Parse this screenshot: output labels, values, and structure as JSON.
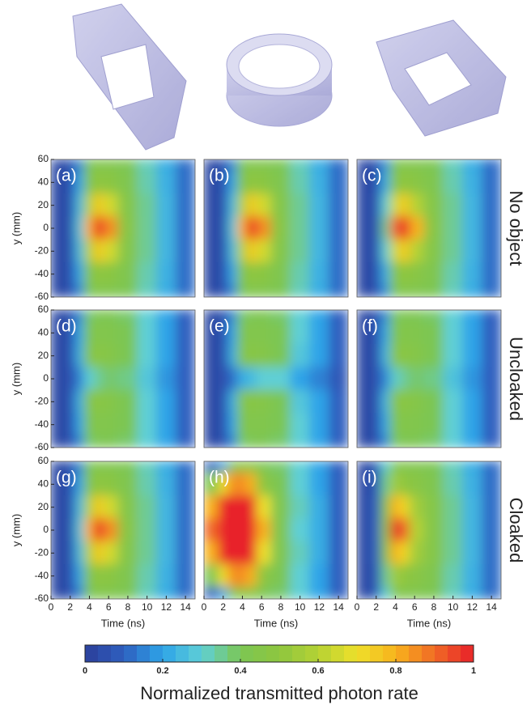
{
  "chart_data": [
    {
      "type": "heatmap",
      "panel_label": "(a)",
      "x": [
        1,
        2,
        3,
        4,
        5,
        6,
        8,
        10,
        12,
        14
      ],
      "y": [
        60,
        40,
        20,
        0,
        -20,
        -40,
        -60
      ],
      "xlim": [
        0,
        15
      ],
      "ylim": [
        -60,
        60
      ],
      "yticks": [
        -60,
        -40,
        -20,
        0,
        20,
        40,
        60
      ],
      "y_label": "y (mm)",
      "z": [
        [
          0.03,
          0.05,
          0.15,
          0.4,
          0.42,
          0.42,
          0.4,
          0.32,
          0.22,
          0.12
        ],
        [
          0.03,
          0.05,
          0.2,
          0.45,
          0.5,
          0.48,
          0.42,
          0.33,
          0.23,
          0.12
        ],
        [
          0.03,
          0.05,
          0.25,
          0.6,
          0.75,
          0.65,
          0.45,
          0.35,
          0.24,
          0.12
        ],
        [
          0.03,
          0.05,
          0.28,
          0.8,
          1,
          0.85,
          0.47,
          0.35,
          0.24,
          0.12
        ],
        [
          0.03,
          0.05,
          0.25,
          0.6,
          0.75,
          0.65,
          0.45,
          0.35,
          0.24,
          0.12
        ],
        [
          0.03,
          0.05,
          0.2,
          0.45,
          0.5,
          0.48,
          0.42,
          0.33,
          0.23,
          0.12
        ],
        [
          0.03,
          0.05,
          0.15,
          0.4,
          0.42,
          0.42,
          0.4,
          0.32,
          0.22,
          0.12
        ]
      ]
    },
    {
      "type": "heatmap",
      "panel_label": "(b)",
      "x": [
        1,
        2,
        3,
        4,
        5,
        6,
        8,
        10,
        12,
        14
      ],
      "y": [
        60,
        40,
        20,
        0,
        -20,
        -40,
        -60
      ],
      "xlim": [
        0,
        15
      ],
      "ylim": [
        -60,
        60
      ],
      "z": [
        [
          0.03,
          0.05,
          0.15,
          0.4,
          0.42,
          0.42,
          0.4,
          0.32,
          0.22,
          0.12
        ],
        [
          0.03,
          0.05,
          0.2,
          0.45,
          0.5,
          0.48,
          0.42,
          0.33,
          0.23,
          0.12
        ],
        [
          0.03,
          0.05,
          0.25,
          0.6,
          0.75,
          0.65,
          0.45,
          0.35,
          0.24,
          0.12
        ],
        [
          0.03,
          0.05,
          0.28,
          0.8,
          1,
          0.85,
          0.47,
          0.35,
          0.24,
          0.12
        ],
        [
          0.03,
          0.05,
          0.25,
          0.6,
          0.75,
          0.65,
          0.45,
          0.35,
          0.24,
          0.12
        ],
        [
          0.03,
          0.05,
          0.2,
          0.45,
          0.5,
          0.48,
          0.42,
          0.33,
          0.23,
          0.12
        ],
        [
          0.03,
          0.05,
          0.15,
          0.4,
          0.42,
          0.42,
          0.4,
          0.32,
          0.22,
          0.12
        ]
      ]
    },
    {
      "type": "heatmap",
      "panel_label": "(c)",
      "x": [
        1,
        2,
        3,
        4,
        5,
        6,
        8,
        10,
        12,
        14
      ],
      "y": [
        60,
        40,
        20,
        0,
        -20,
        -40,
        -60
      ],
      "xlim": [
        0,
        15
      ],
      "ylim": [
        -60,
        60
      ],
      "row_label": "No object",
      "z": [
        [
          0.03,
          0.05,
          0.17,
          0.41,
          0.42,
          0.42,
          0.4,
          0.32,
          0.22,
          0.12
        ],
        [
          0.03,
          0.05,
          0.22,
          0.47,
          0.5,
          0.47,
          0.42,
          0.33,
          0.23,
          0.12
        ],
        [
          0.03,
          0.06,
          0.3,
          0.65,
          0.75,
          0.6,
          0.45,
          0.35,
          0.24,
          0.12
        ],
        [
          0.03,
          0.06,
          0.35,
          0.9,
          1,
          0.8,
          0.47,
          0.35,
          0.24,
          0.12
        ],
        [
          0.03,
          0.06,
          0.3,
          0.65,
          0.75,
          0.6,
          0.45,
          0.35,
          0.24,
          0.12
        ],
        [
          0.03,
          0.05,
          0.22,
          0.47,
          0.5,
          0.47,
          0.42,
          0.33,
          0.23,
          0.12
        ],
        [
          0.03,
          0.05,
          0.17,
          0.41,
          0.42,
          0.42,
          0.4,
          0.32,
          0.22,
          0.12
        ]
      ]
    },
    {
      "type": "heatmap",
      "panel_label": "(d)",
      "x": [
        1,
        2,
        3,
        4,
        5,
        6,
        8,
        10,
        12,
        14
      ],
      "y": [
        60,
        40,
        20,
        0,
        -20,
        -40,
        -60
      ],
      "xlim": [
        0,
        15
      ],
      "ylim": [
        -60,
        60
      ],
      "yticks": [
        -60,
        -40,
        -20,
        0,
        20,
        40,
        60
      ],
      "y_label": "y (mm)",
      "z": [
        [
          0.03,
          0.05,
          0.15,
          0.38,
          0.4,
          0.4,
          0.38,
          0.3,
          0.2,
          0.1
        ],
        [
          0.03,
          0.05,
          0.2,
          0.42,
          0.44,
          0.43,
          0.4,
          0.3,
          0.2,
          0.1
        ],
        [
          0.03,
          0.05,
          0.22,
          0.46,
          0.47,
          0.45,
          0.4,
          0.3,
          0.2,
          0.1
        ],
        [
          0.03,
          0.05,
          0.15,
          0.3,
          0.35,
          0.38,
          0.36,
          0.28,
          0.18,
          0.1
        ],
        [
          0.03,
          0.05,
          0.22,
          0.46,
          0.47,
          0.45,
          0.4,
          0.3,
          0.2,
          0.1
        ],
        [
          0.03,
          0.05,
          0.2,
          0.42,
          0.44,
          0.43,
          0.4,
          0.3,
          0.2,
          0.1
        ],
        [
          0.03,
          0.05,
          0.15,
          0.38,
          0.4,
          0.4,
          0.38,
          0.3,
          0.2,
          0.1
        ]
      ]
    },
    {
      "type": "heatmap",
      "panel_label": "(e)",
      "x": [
        1,
        2,
        3,
        4,
        5,
        6,
        8,
        10,
        12,
        14
      ],
      "y": [
        60,
        40,
        20,
        0,
        -20,
        -40,
        -60
      ],
      "xlim": [
        0,
        15
      ],
      "ylim": [
        -60,
        60
      ],
      "z": [
        [
          0.03,
          0.05,
          0.15,
          0.38,
          0.4,
          0.4,
          0.38,
          0.3,
          0.2,
          0.1
        ],
        [
          0.03,
          0.05,
          0.2,
          0.42,
          0.44,
          0.43,
          0.4,
          0.3,
          0.2,
          0.1
        ],
        [
          0.03,
          0.05,
          0.22,
          0.45,
          0.46,
          0.45,
          0.4,
          0.28,
          0.2,
          0.1
        ],
        [
          0.03,
          0.05,
          0.12,
          0.22,
          0.25,
          0.3,
          0.3,
          0.2,
          0.15,
          0.08
        ],
        [
          0.03,
          0.05,
          0.22,
          0.45,
          0.46,
          0.45,
          0.4,
          0.28,
          0.2,
          0.1
        ],
        [
          0.03,
          0.05,
          0.2,
          0.42,
          0.44,
          0.43,
          0.4,
          0.3,
          0.2,
          0.1
        ],
        [
          0.03,
          0.05,
          0.15,
          0.38,
          0.4,
          0.4,
          0.38,
          0.3,
          0.2,
          0.1
        ]
      ]
    },
    {
      "type": "heatmap",
      "panel_label": "(f)",
      "x": [
        1,
        2,
        3,
        4,
        5,
        6,
        8,
        10,
        12,
        14
      ],
      "y": [
        60,
        40,
        20,
        0,
        -20,
        -40,
        -60
      ],
      "xlim": [
        0,
        15
      ],
      "ylim": [
        -60,
        60
      ],
      "row_label": "Uncloaked",
      "z": [
        [
          0.03,
          0.05,
          0.16,
          0.39,
          0.4,
          0.4,
          0.38,
          0.3,
          0.2,
          0.1
        ],
        [
          0.03,
          0.05,
          0.21,
          0.43,
          0.44,
          0.43,
          0.4,
          0.3,
          0.2,
          0.1
        ],
        [
          0.03,
          0.05,
          0.24,
          0.47,
          0.47,
          0.45,
          0.4,
          0.3,
          0.2,
          0.1
        ],
        [
          0.03,
          0.05,
          0.16,
          0.31,
          0.35,
          0.38,
          0.36,
          0.27,
          0.18,
          0.1
        ],
        [
          0.03,
          0.05,
          0.24,
          0.47,
          0.47,
          0.45,
          0.4,
          0.3,
          0.2,
          0.1
        ],
        [
          0.03,
          0.05,
          0.21,
          0.43,
          0.44,
          0.43,
          0.4,
          0.3,
          0.2,
          0.1
        ],
        [
          0.03,
          0.05,
          0.16,
          0.39,
          0.4,
          0.4,
          0.38,
          0.3,
          0.2,
          0.1
        ]
      ]
    },
    {
      "type": "heatmap",
      "panel_label": "(g)",
      "x": [
        1,
        2,
        3,
        4,
        5,
        6,
        8,
        10,
        12,
        14
      ],
      "y": [
        60,
        40,
        20,
        0,
        -20,
        -40,
        -60
      ],
      "xlim": [
        0,
        15
      ],
      "ylim": [
        -60,
        60
      ],
      "xticks": [
        0,
        2,
        4,
        6,
        8,
        10,
        12,
        14
      ],
      "yticks": [
        -60,
        -40,
        -20,
        0,
        20,
        40,
        60
      ],
      "x_label": "Time (ns)",
      "y_label": "y (mm)",
      "z": [
        [
          0.03,
          0.05,
          0.15,
          0.4,
          0.42,
          0.42,
          0.4,
          0.32,
          0.22,
          0.12
        ],
        [
          0.03,
          0.05,
          0.2,
          0.45,
          0.5,
          0.48,
          0.42,
          0.33,
          0.23,
          0.12
        ],
        [
          0.03,
          0.05,
          0.25,
          0.6,
          0.75,
          0.65,
          0.45,
          0.35,
          0.24,
          0.12
        ],
        [
          0.03,
          0.05,
          0.28,
          0.8,
          1,
          0.85,
          0.47,
          0.35,
          0.24,
          0.12
        ],
        [
          0.03,
          0.05,
          0.25,
          0.6,
          0.75,
          0.65,
          0.45,
          0.35,
          0.24,
          0.12
        ],
        [
          0.03,
          0.05,
          0.2,
          0.45,
          0.5,
          0.48,
          0.42,
          0.33,
          0.23,
          0.12
        ],
        [
          0.03,
          0.05,
          0.15,
          0.4,
          0.42,
          0.42,
          0.4,
          0.32,
          0.22,
          0.12
        ]
      ]
    },
    {
      "type": "heatmap",
      "panel_label": "(h)",
      "x": [
        1,
        2,
        3,
        4,
        5,
        6,
        8,
        10,
        12,
        14
      ],
      "y": [
        60,
        40,
        20,
        0,
        -20,
        -40,
        -60
      ],
      "xlim": [
        0,
        15
      ],
      "ylim": [
        -60,
        60
      ],
      "xticks": [
        0,
        2,
        4,
        6,
        8,
        10,
        12,
        14
      ],
      "x_label": "Time (ns)",
      "z": [
        [
          0.1,
          0.2,
          0.4,
          0.45,
          0.45,
          0.4,
          0.38,
          0.3,
          0.2,
          0.1
        ],
        [
          0.4,
          0.7,
          0.85,
          0.85,
          0.8,
          0.5,
          0.4,
          0.3,
          0.2,
          0.1
        ],
        [
          0.8,
          1,
          1,
          1,
          1,
          0.7,
          0.42,
          0.32,
          0.22,
          0.1
        ],
        [
          0.9,
          1,
          1,
          1,
          1,
          0.8,
          0.42,
          0.3,
          0.22,
          0.1
        ],
        [
          0.8,
          1,
          1,
          1,
          1,
          0.7,
          0.42,
          0.32,
          0.22,
          0.1
        ],
        [
          0.4,
          0.7,
          0.85,
          0.85,
          0.8,
          0.5,
          0.4,
          0.3,
          0.2,
          0.1
        ],
        [
          0.1,
          0.2,
          0.4,
          0.45,
          0.45,
          0.4,
          0.38,
          0.3,
          0.2,
          0.1
        ]
      ]
    },
    {
      "type": "heatmap",
      "panel_label": "(i)",
      "x": [
        1,
        2,
        3,
        4,
        5,
        6,
        8,
        10,
        12,
        14
      ],
      "y": [
        60,
        40,
        20,
        0,
        -20,
        -40,
        -60
      ],
      "xlim": [
        0,
        15
      ],
      "ylim": [
        -60,
        60
      ],
      "xticks": [
        0,
        2,
        4,
        6,
        8,
        10,
        12,
        14
      ],
      "x_label": "Time (ns)",
      "row_label": "Cloaked",
      "z": [
        [
          0.03,
          0.08,
          0.3,
          0.42,
          0.42,
          0.42,
          0.4,
          0.32,
          0.22,
          0.12
        ],
        [
          0.03,
          0.08,
          0.35,
          0.55,
          0.5,
          0.47,
          0.42,
          0.33,
          0.23,
          0.12
        ],
        [
          0.03,
          0.1,
          0.45,
          0.8,
          0.72,
          0.55,
          0.45,
          0.35,
          0.24,
          0.12
        ],
        [
          0.03,
          0.1,
          0.5,
          1,
          0.9,
          0.6,
          0.45,
          0.35,
          0.24,
          0.12
        ],
        [
          0.03,
          0.1,
          0.45,
          0.8,
          0.72,
          0.55,
          0.45,
          0.35,
          0.24,
          0.12
        ],
        [
          0.03,
          0.08,
          0.35,
          0.55,
          0.5,
          0.47,
          0.42,
          0.33,
          0.23,
          0.12
        ],
        [
          0.03,
          0.08,
          0.3,
          0.42,
          0.42,
          0.42,
          0.4,
          0.32,
          0.22,
          0.12
        ]
      ]
    },
    {
      "type": "colorbar",
      "label": "Normalized transmitted photon rate",
      "lim": [
        0,
        1
      ],
      "ticks": [
        0,
        0.2,
        0.4,
        0.6,
        0.8,
        1
      ],
      "colors": [
        "#2b3f9a",
        "#2e5fbf",
        "#2ea4e8",
        "#5fcfd6",
        "#7cc653",
        "#8ec63f",
        "#b5d234",
        "#eee02a",
        "#f8b21d",
        "#f06a25",
        "#e8202a"
      ]
    }
  ]
}
